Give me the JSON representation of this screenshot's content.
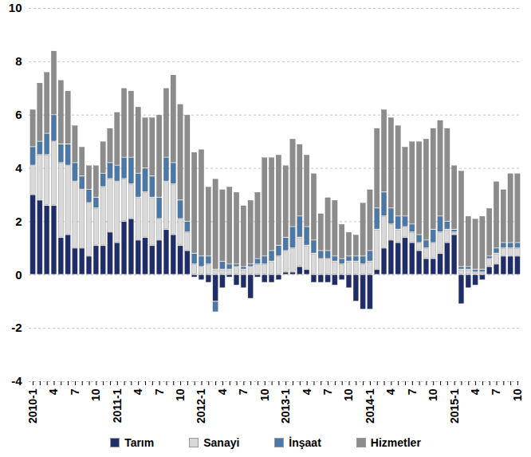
{
  "chart_data": {
    "type": "bar",
    "stacked": true,
    "grid": true,
    "legend": "bottom",
    "categories": [
      "2010-1",
      null,
      null,
      "4",
      null,
      null,
      "7",
      null,
      null,
      "10",
      null,
      null,
      "2011-1",
      null,
      null,
      "4",
      null,
      null,
      "7",
      null,
      null,
      "10",
      null,
      null,
      "2012-1",
      null,
      null,
      "4",
      null,
      null,
      "7",
      null,
      null,
      "10",
      null,
      null,
      "2013-1",
      null,
      null,
      "4",
      null,
      null,
      "7",
      null,
      null,
      "10",
      null,
      null,
      "2014-1",
      null,
      null,
      "4",
      null,
      null,
      "7",
      null,
      null,
      "10",
      null,
      null,
      "2015-1",
      null,
      null,
      "4",
      null,
      null,
      "7",
      null,
      null,
      "10"
    ],
    "ylim": [
      -4,
      10
    ],
    "yticks": [
      -4,
      -2,
      0,
      2,
      4,
      6,
      8,
      10
    ],
    "series": [
      {
        "name": "Tarım",
        "color": "#1f2d6b",
        "values": [
          3.0,
          2.8,
          2.6,
          2.6,
          1.4,
          1.5,
          1.0,
          1.0,
          0.7,
          1.1,
          1.1,
          1.6,
          1.2,
          2.0,
          2.1,
          1.3,
          1.4,
          1.1,
          1.3,
          1.7,
          1.5,
          1.1,
          0.9,
          -0.1,
          -0.2,
          -0.3,
          -1.0,
          -0.5,
          -0.1,
          -0.4,
          -0.5,
          -0.9,
          -0.1,
          -0.3,
          -0.3,
          -0.2,
          0.1,
          0.1,
          0.3,
          0.2,
          -0.3,
          -0.3,
          -0.3,
          -0.4,
          -0.2,
          -0.5,
          -1.0,
          -1.3,
          -1.3,
          0.2,
          1.0,
          1.3,
          1.2,
          1.4,
          1.2,
          0.9,
          0.6,
          0.6,
          0.8,
          1.2,
          1.5,
          -1.1,
          -0.5,
          -0.4,
          -0.2,
          0.3,
          0.4,
          0.7,
          0.7,
          0.7
        ]
      },
      {
        "name": "Sanayi",
        "color": "#d9d9d9",
        "values": [
          1.1,
          1.7,
          1.9,
          2.4,
          2.8,
          2.6,
          2.5,
          2.2,
          2.0,
          1.4,
          2.2,
          2.0,
          2.3,
          1.6,
          1.3,
          1.6,
          1.7,
          1.8,
          0.8,
          1.8,
          1.9,
          1.0,
          0.7,
          0.4,
          0.3,
          0.4,
          0.2,
          0.2,
          0.2,
          0.3,
          0.2,
          0.3,
          0.4,
          0.4,
          0.5,
          0.7,
          0.8,
          0.9,
          1.1,
          0.9,
          0.8,
          0.6,
          0.6,
          0.5,
          0.4,
          0.5,
          0.5,
          0.4,
          0.5,
          1.5,
          1.2,
          0.6,
          0.5,
          0.4,
          0.4,
          0.3,
          0.4,
          0.6,
          0.8,
          0.5,
          0.1,
          0.2,
          0.2,
          0.1,
          0.1,
          0.3,
          0.4,
          0.3,
          0.3,
          0.3
        ]
      },
      {
        "name": "İnşaat",
        "color": "#4a78a8",
        "values": [
          0.7,
          0.5,
          0.8,
          1.0,
          0.7,
          0.8,
          0.7,
          0.5,
          0.5,
          0.4,
          0.5,
          0.6,
          0.6,
          0.8,
          1.0,
          0.9,
          0.9,
          0.8,
          0.8,
          0.9,
          0.8,
          0.7,
          0.4,
          0.4,
          0.4,
          0.3,
          -0.4,
          0.3,
          0.2,
          0.1,
          0.1,
          0.1,
          0.2,
          0.3,
          0.4,
          0.4,
          0.5,
          0.8,
          0.8,
          0.7,
          0.5,
          0.3,
          0.3,
          0.2,
          0.2,
          0.2,
          0.2,
          0.3,
          0.4,
          0.8,
          0.9,
          0.6,
          0.5,
          0.4,
          0.3,
          0.3,
          0.3,
          0.5,
          0.6,
          0.3,
          0.1,
          0.1,
          0.1,
          0.1,
          0.1,
          0.1,
          0.2,
          0.2,
          0.2,
          0.2
        ]
      },
      {
        "name": "Hizmetler",
        "color": "#8c8c8c",
        "values": [
          1.4,
          2.2,
          2.3,
          2.4,
          2.4,
          2.0,
          1.4,
          1.1,
          0.9,
          1.2,
          1.2,
          1.3,
          2.0,
          2.6,
          2.5,
          2.5,
          1.9,
          2.2,
          3.1,
          2.6,
          3.3,
          3.6,
          4.0,
          3.8,
          4.0,
          2.6,
          3.4,
          2.7,
          2.9,
          2.7,
          2.3,
          2.4,
          2.5,
          3.7,
          3.5,
          3.4,
          2.7,
          3.3,
          2.7,
          2.7,
          2.5,
          1.4,
          2.0,
          2.1,
          1.3,
          0.9,
          0.8,
          2.0,
          2.3,
          3.0,
          3.1,
          3.4,
          3.4,
          2.6,
          3.1,
          3.5,
          3.8,
          3.8,
          3.6,
          3.5,
          2.4,
          3.6,
          1.9,
          1.9,
          2.0,
          1.8,
          2.5,
          2.0,
          2.6,
          2.6
        ]
      }
    ]
  }
}
